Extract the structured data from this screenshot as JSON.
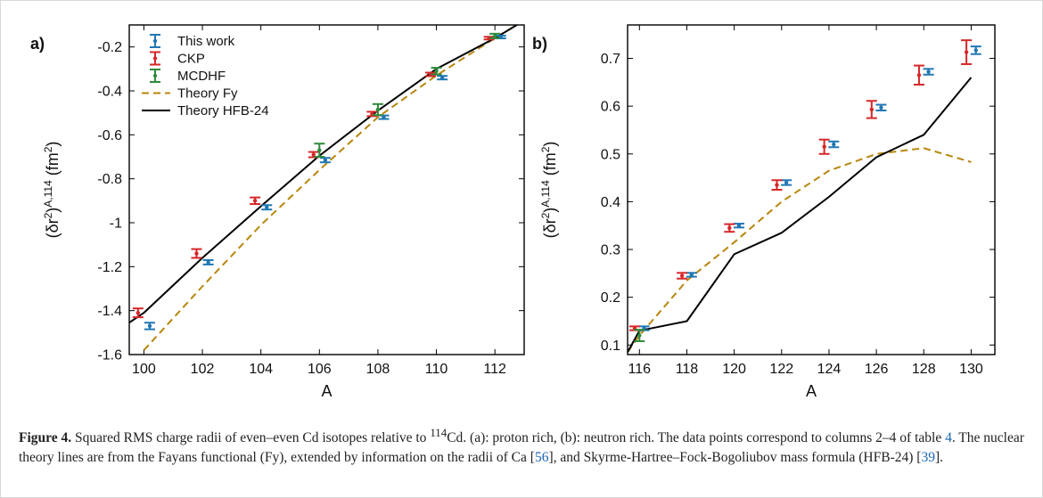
{
  "colors": {
    "this_work": "#1f77b4",
    "ckp": "#d62728",
    "mcdhf": "#2e8b3c",
    "theory_fy": "#b8860b",
    "theory_hfb24": "#000000"
  },
  "chart_data": [
    {
      "type": "scatter",
      "panel_label": "a)",
      "xlabel": "A",
      "ylabel_main": "(δr",
      "ylabel_sup": "2",
      "ylabel_mid": ")",
      "ylabel_sup2": "A,114",
      "ylabel_unit": " (fm",
      "ylabel_unit_sup": "2",
      "ylabel_end": ")",
      "xlim": [
        99.5,
        113
      ],
      "ylim": [
        -1.6,
        -0.1
      ],
      "xticks": [
        100,
        102,
        104,
        106,
        108,
        110,
        112
      ],
      "xtick_labels": [
        "100",
        "102",
        "104",
        "106",
        "108",
        "110",
        "112"
      ],
      "yticks": [
        -1.6,
        -1.4,
        -1.2,
        -1.0,
        -0.8,
        -0.6,
        -0.4,
        -0.2
      ],
      "ytick_labels": [
        "-1.6",
        "-1.4",
        "-1.2",
        "-1",
        "-0.8",
        "-0.6",
        "-0.4",
        "-0.2"
      ],
      "legend_position": "top-left",
      "series": [
        {
          "key": "this_work",
          "name": "This work",
          "kind": "errorbar",
          "offset": 0.2,
          "x": [
            100,
            102,
            104,
            106,
            108,
            110,
            112
          ],
          "y": [
            -1.47,
            -1.18,
            -0.93,
            -0.715,
            -0.52,
            -0.34,
            -0.155
          ],
          "err": [
            0.015,
            0.01,
            0.01,
            0.01,
            0.008,
            0.008,
            0.006
          ]
        },
        {
          "key": "ckp",
          "name": "CKP",
          "kind": "errorbar",
          "offset": -0.2,
          "x": [
            100,
            102,
            104,
            106,
            108,
            110,
            112
          ],
          "y": [
            -1.41,
            -1.14,
            -0.9,
            -0.69,
            -0.505,
            -0.325,
            -0.16
          ],
          "err": [
            0.02,
            0.02,
            0.015,
            0.012,
            0.01,
            0.008,
            0.006
          ]
        },
        {
          "key": "mcdhf",
          "name": "MCDHF",
          "kind": "errorbar",
          "offset": 0.0,
          "x": [
            106,
            108,
            110,
            112
          ],
          "y": [
            -0.67,
            -0.485,
            -0.31,
            -0.15
          ],
          "err": [
            0.03,
            0.025,
            0.015,
            0.01
          ]
        },
        {
          "key": "theory_fy",
          "name": "Theory Fy",
          "kind": "dashed",
          "x": [
            100,
            102,
            104,
            106,
            108,
            110,
            112,
            113
          ],
          "y": [
            -1.58,
            -1.29,
            -1.01,
            -0.76,
            -0.52,
            -0.33,
            -0.16,
            -0.08
          ]
        },
        {
          "key": "theory_hfb24",
          "name": "Theory HFB-24",
          "kind": "solid",
          "x": [
            99.5,
            100,
            102,
            104,
            106,
            108,
            110,
            112,
            113
          ],
          "y": [
            -1.455,
            -1.41,
            -1.16,
            -0.925,
            -0.695,
            -0.49,
            -0.3,
            -0.16,
            -0.08
          ]
        }
      ]
    },
    {
      "type": "scatter",
      "panel_label": "b)",
      "xlabel": "A",
      "ylabel_main": "(δr",
      "ylabel_sup": "2",
      "ylabel_mid": ")",
      "ylabel_sup2": "A,114",
      "ylabel_unit": " (fm",
      "ylabel_unit_sup": "2",
      "ylabel_end": ")",
      "xlim": [
        115.5,
        131
      ],
      "ylim": [
        0.08,
        0.77
      ],
      "xticks": [
        116,
        118,
        120,
        122,
        124,
        126,
        128,
        130
      ],
      "xtick_labels": [
        "116",
        "118",
        "120",
        "122",
        "124",
        "126",
        "128",
        "130"
      ],
      "yticks": [
        0.1,
        0.2,
        0.3,
        0.4,
        0.5,
        0.6,
        0.7
      ],
      "ytick_labels": [
        "0.1",
        "0.2",
        "0.3",
        "0.4",
        "0.5",
        "0.6",
        "0.7"
      ],
      "series": [
        {
          "key": "this_work",
          "name": "This work",
          "kind": "errorbar",
          "offset": 0.2,
          "x": [
            116,
            118,
            120,
            122,
            124,
            126,
            128,
            130
          ],
          "y": [
            0.135,
            0.247,
            0.35,
            0.44,
            0.52,
            0.597,
            0.672,
            0.717
          ],
          "err": [
            0.004,
            0.004,
            0.004,
            0.005,
            0.006,
            0.006,
            0.006,
            0.008
          ]
        },
        {
          "key": "ckp",
          "name": "CKP",
          "kind": "errorbar",
          "offset": -0.2,
          "x": [
            116,
            118,
            120,
            122,
            124,
            126,
            128,
            130
          ],
          "y": [
            0.135,
            0.245,
            0.345,
            0.435,
            0.515,
            0.593,
            0.665,
            0.713
          ],
          "err": [
            0.004,
            0.006,
            0.008,
            0.01,
            0.015,
            0.018,
            0.02,
            0.025
          ]
        },
        {
          "key": "mcdhf",
          "name": "MCDHF",
          "kind": "errorbar",
          "offset": 0.0,
          "x": [
            116
          ],
          "y": [
            0.12
          ],
          "err": [
            0.012
          ]
        },
        {
          "key": "theory_fy",
          "name": "Theory Fy",
          "kind": "dashed",
          "x": [
            115.5,
            116,
            118,
            120,
            122,
            124,
            126,
            128,
            130
          ],
          "y": [
            0.085,
            0.12,
            0.235,
            0.315,
            0.4,
            0.465,
            0.5,
            0.512,
            0.483
          ]
        },
        {
          "key": "theory_hfb24",
          "name": "Theory HFB-24",
          "kind": "solid",
          "x": [
            115.5,
            116,
            118,
            120,
            122,
            124,
            126,
            128,
            130
          ],
          "y": [
            0.085,
            0.13,
            0.15,
            0.29,
            0.335,
            0.41,
            0.493,
            0.54,
            0.66
          ]
        }
      ]
    }
  ],
  "caption": {
    "label": "Figure 4.",
    "t1": " Squared RMS charge radii of even–even Cd isotopes relative to ",
    "sup1": "114",
    "t2": "Cd. (a): proton rich, (b): neutron rich. The data points correspond to columns 2–4 of table ",
    "ref_table": "4",
    "t3": ". The nuclear theory lines are from the Fayans functional (Fy), extended by information on the radii of Ca [",
    "ref1": "56",
    "t4": "], and Skyrme-Hartree–Fock-Bogoliubov mass formula (HFB-24) [",
    "ref2": "39",
    "t5": "]."
  }
}
